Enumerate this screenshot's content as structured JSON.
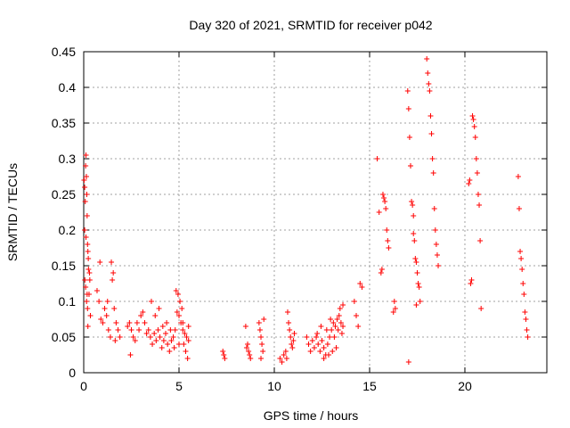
{
  "chart_data": {
    "type": "scatter",
    "title": "Day 320 of 2021, SRMTID for receiver p042",
    "xlabel": "GPS time / hours",
    "ylabel": "SRMTID / TECUs",
    "xlim": [
      0,
      24.3
    ],
    "ylim": [
      0,
      0.45
    ],
    "xticks": [
      0,
      5,
      10,
      15,
      20
    ],
    "xtick_labels": [
      "0",
      "5",
      "10",
      "15",
      "20"
    ],
    "yticks": [
      0,
      0.05,
      0.1,
      0.15,
      0.2,
      0.25,
      0.3,
      0.35,
      0.4,
      0.45
    ],
    "ytick_labels": [
      "0",
      "0.05",
      "0.1",
      "0.15",
      "0.2",
      "0.25",
      "0.3",
      "0.35",
      "0.4",
      "0.45"
    ],
    "grid": true,
    "series": [
      {
        "name": "SRMTID",
        "color": "#ff0000",
        "marker": "plus",
        "points": [
          [
            0.02,
            0.27
          ],
          [
            0.05,
            0.26
          ],
          [
            0.08,
            0.24
          ],
          [
            0.1,
            0.29
          ],
          [
            0.12,
            0.305
          ],
          [
            0.14,
            0.275
          ],
          [
            0.16,
            0.25
          ],
          [
            0.18,
            0.22
          ],
          [
            0.2,
            0.18
          ],
          [
            0.22,
            0.17
          ],
          [
            0.24,
            0.16
          ],
          [
            0.06,
            0.13
          ],
          [
            0.1,
            0.12
          ],
          [
            0.15,
            0.1
          ],
          [
            0.2,
            0.09
          ],
          [
            0.25,
            0.145
          ],
          [
            0.3,
            0.14
          ],
          [
            0.28,
            0.11
          ],
          [
            0.32,
            0.13
          ],
          [
            0.35,
            0.08
          ],
          [
            0.05,
            0.2
          ],
          [
            0.12,
            0.19
          ],
          [
            0.18,
            0.11
          ],
          [
            0.22,
            0.065
          ],
          [
            0.7,
            0.115
          ],
          [
            0.8,
            0.1
          ],
          [
            0.9,
            0.075
          ],
          [
            1.0,
            0.07
          ],
          [
            1.1,
            0.09
          ],
          [
            1.2,
            0.08
          ],
          [
            1.3,
            0.06
          ],
          [
            1.4,
            0.05
          ],
          [
            1.5,
            0.13
          ],
          [
            1.55,
            0.14
          ],
          [
            1.6,
            0.09
          ],
          [
            1.7,
            0.07
          ],
          [
            1.8,
            0.06
          ],
          [
            1.9,
            0.05
          ],
          [
            0.85,
            0.155
          ],
          [
            1.45,
            0.155
          ],
          [
            1.25,
            0.1
          ],
          [
            1.65,
            0.045
          ],
          [
            2.3,
            0.065
          ],
          [
            2.4,
            0.07
          ],
          [
            2.5,
            0.06
          ],
          [
            2.6,
            0.05
          ],
          [
            2.7,
            0.045
          ],
          [
            2.8,
            0.07
          ],
          [
            2.9,
            0.06
          ],
          [
            3.0,
            0.08
          ],
          [
            3.1,
            0.085
          ],
          [
            3.2,
            0.07
          ],
          [
            3.3,
            0.055
          ],
          [
            3.4,
            0.06
          ],
          [
            2.45,
            0.025
          ],
          [
            3.5,
            0.05
          ],
          [
            3.6,
            0.04
          ],
          [
            3.7,
            0.055
          ],
          [
            3.8,
            0.045
          ],
          [
            3.9,
            0.06
          ],
          [
            4.0,
            0.05
          ],
          [
            4.1,
            0.035
          ],
          [
            4.2,
            0.045
          ],
          [
            4.3,
            0.055
          ],
          [
            4.4,
            0.04
          ],
          [
            4.5,
            0.03
          ],
          [
            4.6,
            0.045
          ],
          [
            3.55,
            0.1
          ],
          [
            3.75,
            0.08
          ],
          [
            3.95,
            0.09
          ],
          [
            4.15,
            0.065
          ],
          [
            4.35,
            0.07
          ],
          [
            4.55,
            0.06
          ],
          [
            4.7,
            0.05
          ],
          [
            4.8,
            0.06
          ],
          [
            4.9,
            0.085
          ],
          [
            5.0,
            0.08
          ],
          [
            5.1,
            0.07
          ],
          [
            5.2,
            0.06
          ],
          [
            5.3,
            0.055
          ],
          [
            5.4,
            0.05
          ],
          [
            5.5,
            0.045
          ],
          [
            4.85,
            0.115
          ],
          [
            4.95,
            0.11
          ],
          [
            5.05,
            0.1
          ],
          [
            5.15,
            0.09
          ],
          [
            5.25,
            0.04
          ],
          [
            5.35,
            0.03
          ],
          [
            5.45,
            0.02
          ],
          [
            4.75,
            0.035
          ],
          [
            5.0,
            0.04
          ],
          [
            5.2,
            0.07
          ],
          [
            5.5,
            0.065
          ],
          [
            7.3,
            0.03
          ],
          [
            7.35,
            0.025
          ],
          [
            7.4,
            0.02
          ],
          [
            8.5,
            0.065
          ],
          [
            8.55,
            0.035
          ],
          [
            8.6,
            0.04
          ],
          [
            8.65,
            0.03
          ],
          [
            8.7,
            0.025
          ],
          [
            8.75,
            0.02
          ],
          [
            9.2,
            0.07
          ],
          [
            9.25,
            0.06
          ],
          [
            9.3,
            0.05
          ],
          [
            9.35,
            0.04
          ],
          [
            9.4,
            0.03
          ],
          [
            9.45,
            0.075
          ],
          [
            9.3,
            0.02
          ],
          [
            10.3,
            0.02
          ],
          [
            10.4,
            0.015
          ],
          [
            10.5,
            0.025
          ],
          [
            10.6,
            0.03
          ],
          [
            10.7,
            0.085
          ],
          [
            10.75,
            0.07
          ],
          [
            10.8,
            0.06
          ],
          [
            10.85,
            0.05
          ],
          [
            10.9,
            0.04
          ],
          [
            10.95,
            0.035
          ],
          [
            11.0,
            0.045
          ],
          [
            11.05,
            0.055
          ],
          [
            10.65,
            0.02
          ],
          [
            11.7,
            0.05
          ],
          [
            11.8,
            0.04
          ],
          [
            11.9,
            0.03
          ],
          [
            12.0,
            0.045
          ],
          [
            12.1,
            0.035
          ],
          [
            12.2,
            0.05
          ],
          [
            12.3,
            0.04
          ],
          [
            12.4,
            0.03
          ],
          [
            12.5,
            0.045
          ],
          [
            12.6,
            0.035
          ],
          [
            12.7,
            0.025
          ],
          [
            12.8,
            0.04
          ],
          [
            12.9,
            0.05
          ],
          [
            13.0,
            0.06
          ],
          [
            13.1,
            0.07
          ],
          [
            13.2,
            0.065
          ],
          [
            13.3,
            0.075
          ],
          [
            13.4,
            0.08
          ],
          [
            13.5,
            0.07
          ],
          [
            13.6,
            0.065
          ],
          [
            12.25,
            0.055
          ],
          [
            12.45,
            0.065
          ],
          [
            12.75,
            0.06
          ],
          [
            12.95,
            0.075
          ],
          [
            13.15,
            0.05
          ],
          [
            13.35,
            0.06
          ],
          [
            13.55,
            0.055
          ],
          [
            12.6,
            0.02
          ],
          [
            12.85,
            0.025
          ],
          [
            13.05,
            0.03
          ],
          [
            13.25,
            0.035
          ],
          [
            13.45,
            0.09
          ],
          [
            13.6,
            0.095
          ],
          [
            14.2,
            0.1
          ],
          [
            14.3,
            0.08
          ],
          [
            14.4,
            0.065
          ],
          [
            14.5,
            0.125
          ],
          [
            14.6,
            0.12
          ],
          [
            15.4,
            0.3
          ],
          [
            15.5,
            0.225
          ],
          [
            15.6,
            0.14
          ],
          [
            15.7,
            0.25
          ],
          [
            15.75,
            0.245
          ],
          [
            15.8,
            0.24
          ],
          [
            15.85,
            0.23
          ],
          [
            15.9,
            0.2
          ],
          [
            15.95,
            0.185
          ],
          [
            16.0,
            0.175
          ],
          [
            15.65,
            0.145
          ],
          [
            16.25,
            0.085
          ],
          [
            16.3,
            0.1
          ],
          [
            16.35,
            0.09
          ],
          [
            17.0,
            0.395
          ],
          [
            17.05,
            0.37
          ],
          [
            17.1,
            0.33
          ],
          [
            17.15,
            0.29
          ],
          [
            17.2,
            0.24
          ],
          [
            17.25,
            0.235
          ],
          [
            17.3,
            0.22
          ],
          [
            17.35,
            0.185
          ],
          [
            17.4,
            0.16
          ],
          [
            17.45,
            0.155
          ],
          [
            17.5,
            0.14
          ],
          [
            17.55,
            0.125
          ],
          [
            17.6,
            0.12
          ],
          [
            17.65,
            0.1
          ],
          [
            17.05,
            0.015
          ],
          [
            17.3,
            0.195
          ],
          [
            17.45,
            0.095
          ],
          [
            18.0,
            0.44
          ],
          [
            18.05,
            0.42
          ],
          [
            18.1,
            0.405
          ],
          [
            18.15,
            0.395
          ],
          [
            18.2,
            0.36
          ],
          [
            18.25,
            0.335
          ],
          [
            18.3,
            0.3
          ],
          [
            18.35,
            0.28
          ],
          [
            18.4,
            0.23
          ],
          [
            18.45,
            0.2
          ],
          [
            18.5,
            0.18
          ],
          [
            18.55,
            0.165
          ],
          [
            18.6,
            0.15
          ],
          [
            20.2,
            0.265
          ],
          [
            20.25,
            0.27
          ],
          [
            20.3,
            0.125
          ],
          [
            20.35,
            0.13
          ],
          [
            20.4,
            0.36
          ],
          [
            20.45,
            0.355
          ],
          [
            20.5,
            0.345
          ],
          [
            20.55,
            0.33
          ],
          [
            20.6,
            0.3
          ],
          [
            20.65,
            0.28
          ],
          [
            20.7,
            0.25
          ],
          [
            20.75,
            0.235
          ],
          [
            20.8,
            0.185
          ],
          [
            20.85,
            0.09
          ],
          [
            22.8,
            0.275
          ],
          [
            22.85,
            0.23
          ],
          [
            22.9,
            0.17
          ],
          [
            22.95,
            0.16
          ],
          [
            23.0,
            0.145
          ],
          [
            23.05,
            0.125
          ],
          [
            23.1,
            0.11
          ],
          [
            23.15,
            0.085
          ],
          [
            23.2,
            0.075
          ],
          [
            23.25,
            0.06
          ],
          [
            23.3,
            0.05
          ]
        ]
      }
    ]
  }
}
